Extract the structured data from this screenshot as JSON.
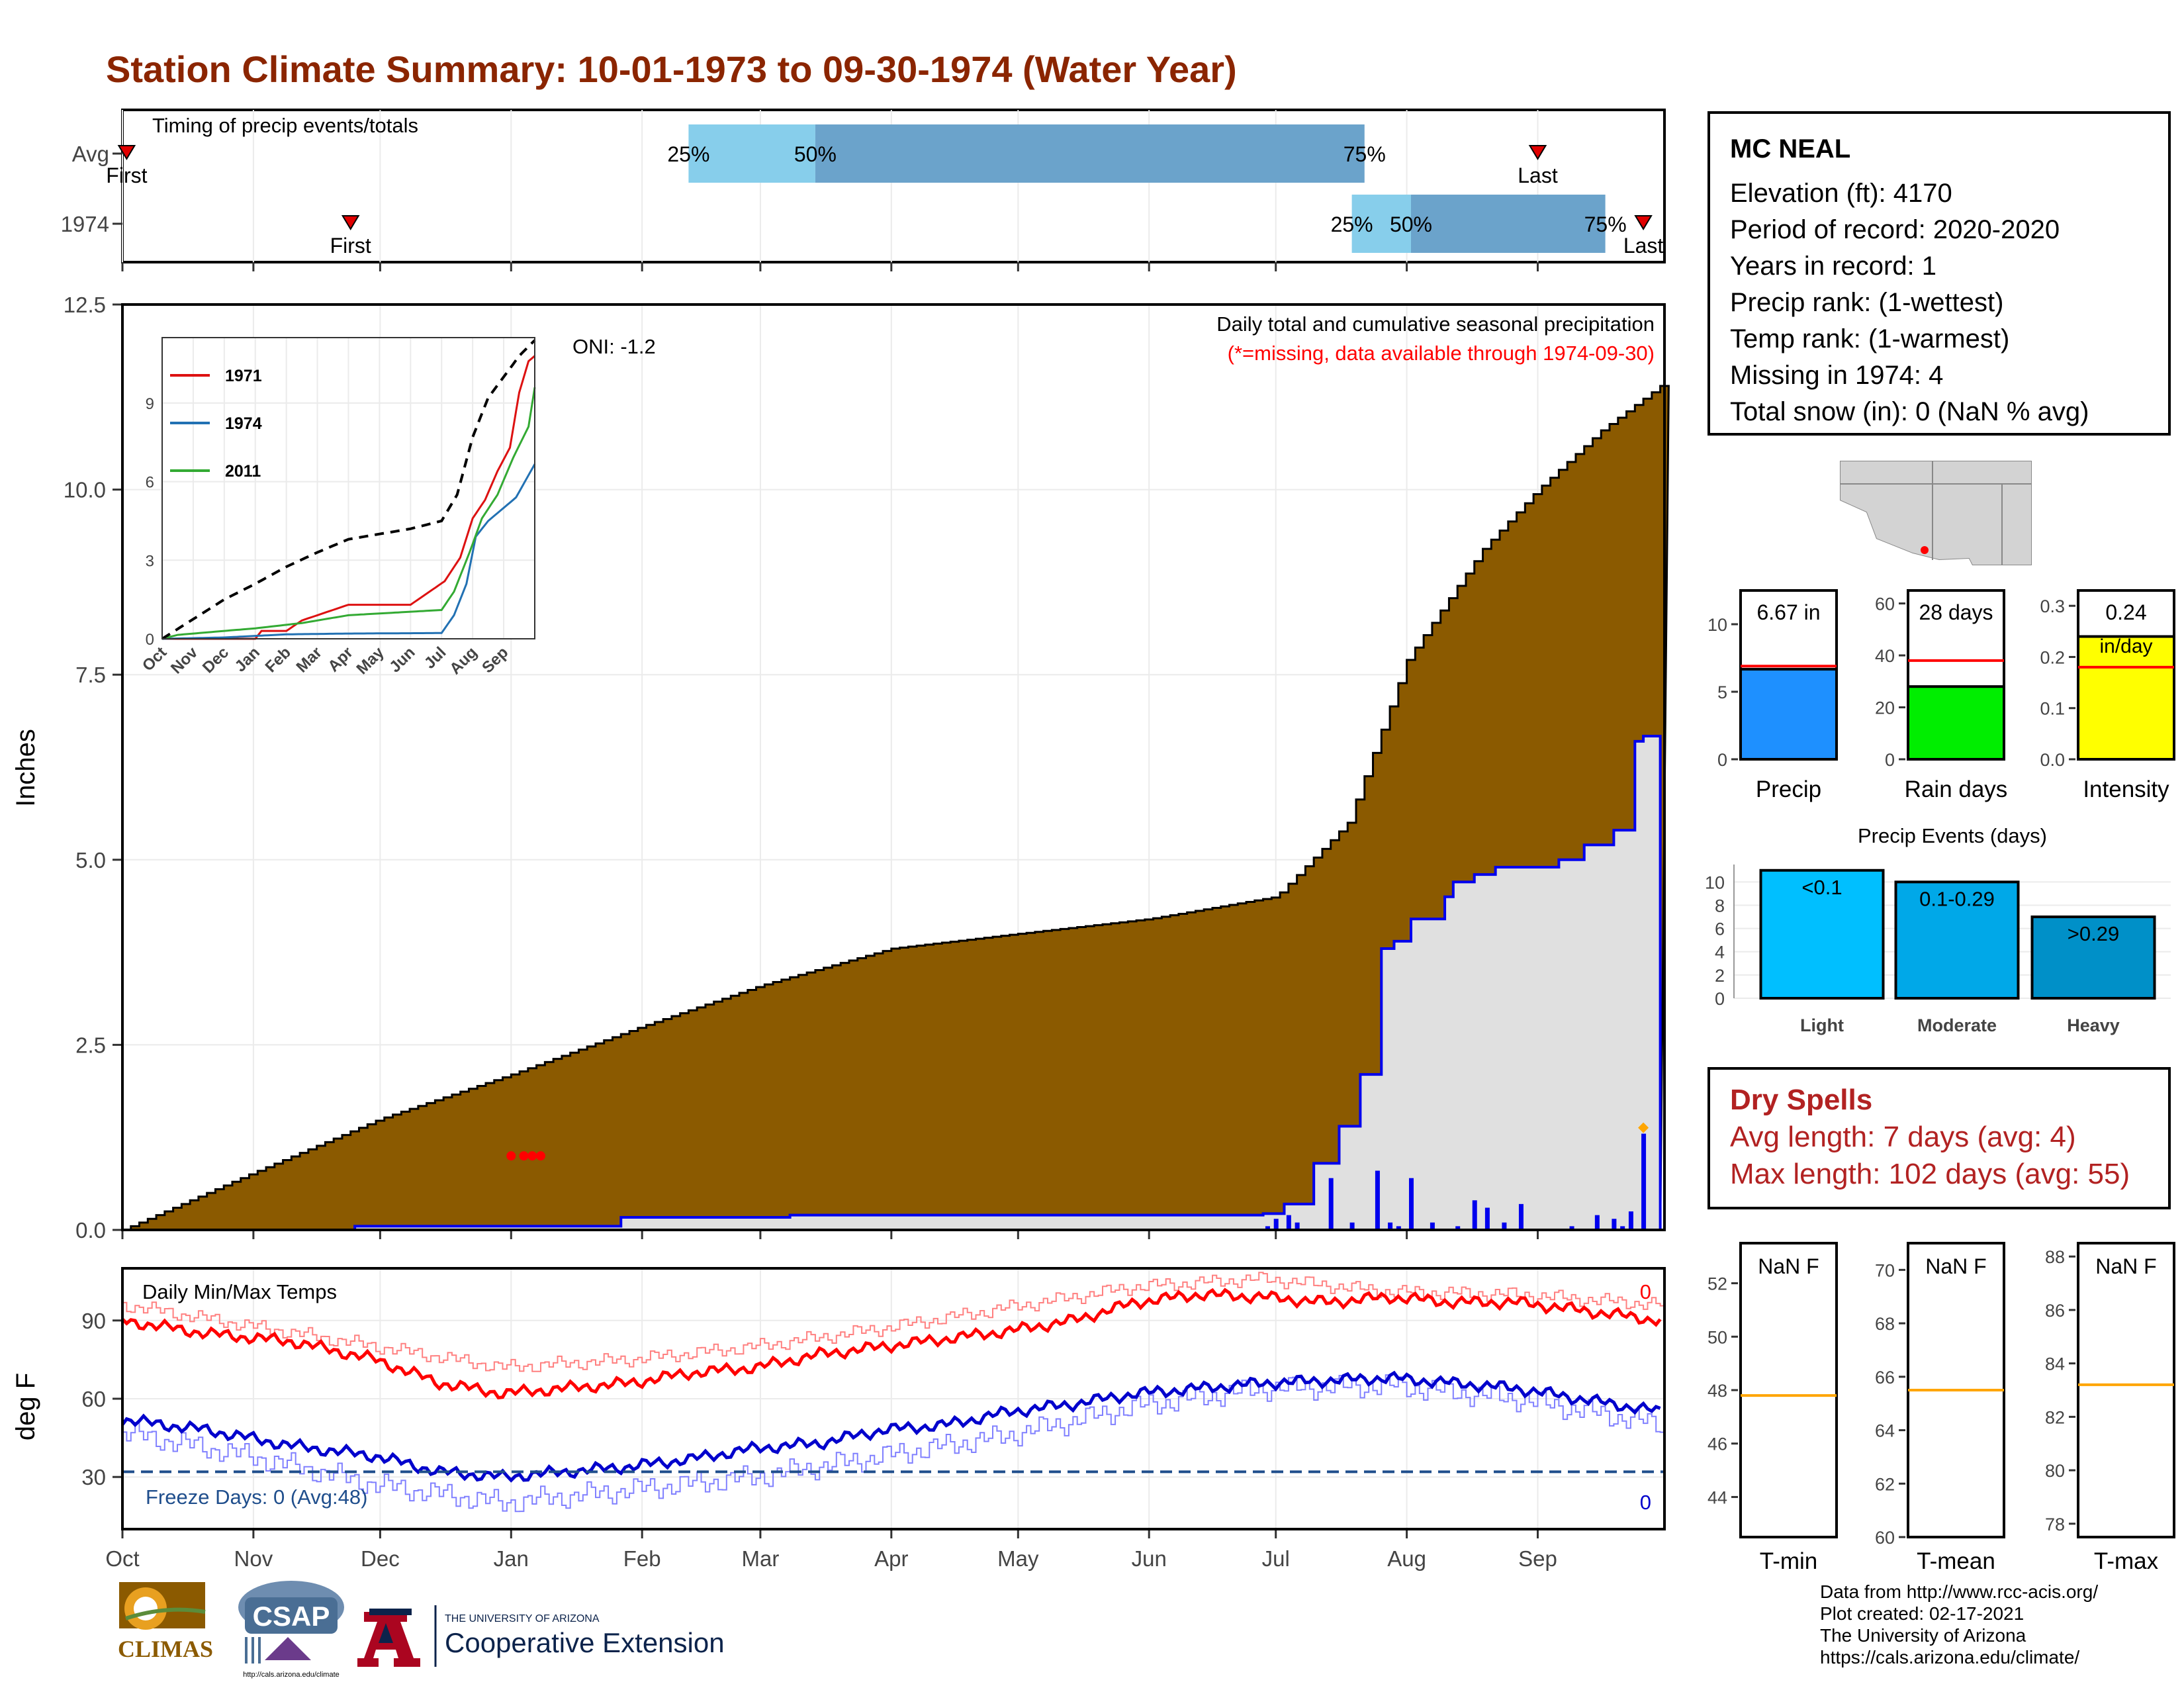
{
  "title": "Station Climate Summary: 10-01-1973 to 09-30-1974 (Water Year)",
  "station": {
    "name": "MC NEAL",
    "lines": [
      "Elevation (ft): 4170",
      "Period of record: 2020-2020",
      "Years in record: 1",
      "Precip rank:  (1-wettest)",
      "Temp rank:  (1-warmest)",
      "Missing in 1974: 4",
      "Total snow (in): 0 (NaN % avg)"
    ]
  },
  "dry_spells": {
    "title": "Dry Spells",
    "avg": "Avg length: 7 days (avg: 4)",
    "max": "Max length: 102 days (avg: 55)"
  },
  "credits": [
    "Data from http://www.rcc-acis.org/",
    "Plot created: 02-17-2021",
    "The University of Arizona",
    "https://cals.arizona.edu/climate/"
  ],
  "logos": {
    "climas": "CLIMAS",
    "csap": "CSAP",
    "csap_url": "http://cals.arizona.edu/climate",
    "ua_small": "THE UNIVERSITY OF ARIZONA",
    "ua_big": "Cooperative Extension"
  },
  "colors": {
    "cumulative_fill": "#8B5A00",
    "current_fill": "#E0E0E0",
    "current_line": "#0000EE",
    "tmax": "#FF0000",
    "tmin": "#0000CC",
    "avg_line": "#FFA500",
    "box_light": "#87CEEB",
    "box_dark": "#6BA3CB"
  },
  "chart_data": [
    {
      "type": "timeline",
      "title": "Timing of precip events/totals",
      "rows": [
        {
          "label": "Avg",
          "first": "Oct 2",
          "q25": "Feb 12",
          "q50": "Mar 14",
          "q75": "Jul 22",
          "last": "Sep 1",
          "first_label": "First",
          "last_label": "Last",
          "q_labels": [
            "25%",
            "50%",
            "75%"
          ]
        },
        {
          "label": "1974",
          "first": "Nov 24",
          "q25": "Jul 19",
          "q50": "Aug 2",
          "q75": "Sep 17",
          "last": "Sep 26",
          "first_label": "First",
          "last_label": "Last",
          "q_labels": [
            "25%",
            "50%",
            "75%"
          ]
        }
      ]
    },
    {
      "type": "area",
      "title": "Daily total and cumulative seasonal precipitation",
      "subtitle": "(*=missing, data available through 1974-09-30)",
      "annotation": "ONI: -1.2",
      "ylabel": "Inches",
      "ylim": [
        0,
        12.5
      ],
      "yticks": [
        "0.0",
        "2.5",
        "5.0",
        "7.5",
        "10.0",
        "12.5"
      ],
      "xticks": [
        "Oct",
        "Nov",
        "Dec",
        "Jan",
        "Feb",
        "Mar",
        "Apr",
        "May",
        "Jun",
        "Jul",
        "Aug",
        "Sep"
      ],
      "cumulative_avg": {
        "day": [
          0,
          30,
          61,
          92,
          123,
          151,
          182,
          212,
          243,
          273,
          290,
          304,
          322,
          335,
          350,
          364
        ],
        "value": [
          0,
          0.75,
          1.5,
          2.1,
          2.75,
          3.3,
          3.8,
          4.0,
          4.2,
          4.5,
          5.5,
          7.7,
          9.2,
          10.0,
          10.8,
          11.4
        ]
      },
      "cumulative_1974": {
        "day": [
          0,
          55,
          118,
          158,
          270,
          275,
          282,
          288,
          293,
          298,
          301,
          305,
          313,
          315,
          320,
          325,
          333,
          340,
          346,
          353,
          358,
          360,
          364
        ],
        "value": [
          0,
          0.05,
          0.17,
          0.2,
          0.22,
          0.35,
          0.9,
          1.4,
          2.1,
          3.8,
          3.9,
          4.2,
          4.5,
          4.7,
          4.8,
          4.9,
          4.9,
          5.0,
          5.2,
          5.4,
          6.6,
          6.67,
          6.67
        ]
      },
      "daily_bars": {
        "day": [
          271,
          273,
          276,
          278,
          286,
          291,
          297,
          300,
          302,
          305,
          310,
          316,
          320,
          323,
          327,
          331,
          343,
          349,
          353,
          355,
          357,
          360
        ],
        "value": [
          0.05,
          0.15,
          0.2,
          0.1,
          0.7,
          0.1,
          0.8,
          0.1,
          0.05,
          0.7,
          0.1,
          0.05,
          0.4,
          0.3,
          0.1,
          0.35,
          0.05,
          0.2,
          0.15,
          0.05,
          0.25,
          1.3
        ]
      },
      "missing_days": [
        92,
        95,
        97,
        99
      ],
      "inset": {
        "type": "line",
        "xticks": [
          "Oct",
          "Nov",
          "Dec",
          "Jan",
          "Feb",
          "Mar",
          "Apr",
          "May",
          "Jun",
          "Jul",
          "Aug",
          "Sep"
        ],
        "yticks": [
          "0",
          "3",
          "6",
          "9"
        ],
        "ylim": [
          0,
          11.5
        ],
        "series": [
          {
            "name": "1971",
            "color": "#DD1111",
            "month": [
              0,
              3,
              3.2,
              4,
              4.5,
              6,
              8,
              9.1,
              9.6,
              10,
              10.4,
              10.8,
              11.2,
              11.5,
              11.8,
              12
            ],
            "value": [
              0,
              0,
              0.3,
              0.3,
              0.7,
              1.3,
              1.3,
              2.2,
              3.1,
              4.6,
              5.3,
              6.4,
              7.3,
              9.4,
              10.6,
              10.8
            ]
          },
          {
            "name": "1974",
            "color": "#2271B3",
            "month": [
              0,
              2,
              4,
              6,
              9,
              9.4,
              9.8,
              10.1,
              10.5,
              10.9,
              11.4,
              12
            ],
            "value": [
              0,
              0.05,
              0.17,
              0.2,
              0.22,
              0.9,
              2.1,
              3.9,
              4.5,
              4.9,
              5.4,
              6.67
            ]
          },
          {
            "name": "2011",
            "color": "#33AA33",
            "month": [
              0,
              0.5,
              3,
              4.5,
              6,
              9,
              9.4,
              9.9,
              10.3,
              10.8,
              11.3,
              11.8,
              12
            ],
            "value": [
              0,
              0.15,
              0.4,
              0.6,
              0.9,
              1.1,
              1.8,
              3.3,
              4.6,
              5.5,
              6.9,
              8.1,
              9.6
            ]
          },
          {
            "name": "avg",
            "color": "#000000",
            "dashed": true,
            "month": [
              0,
              1,
              2,
              3,
              4,
              5,
              6,
              7,
              8,
              9,
              9.5,
              10,
              10.5,
              11,
              11.5,
              12
            ],
            "value": [
              0,
              0.75,
              1.5,
              2.1,
              2.75,
              3.3,
              3.8,
              4.0,
              4.2,
              4.5,
              5.5,
              7.7,
              9.2,
              10.0,
              10.8,
              11.4
            ]
          }
        ]
      }
    },
    {
      "type": "line",
      "title": "Daily Min/Max Temps",
      "ylabel": "deg F",
      "ylim": [
        10,
        110
      ],
      "yticks": [
        "30",
        "60",
        "90"
      ],
      "xticks": [
        "Oct",
        "Nov",
        "Dec",
        "Jan",
        "Feb",
        "Mar",
        "Apr",
        "May",
        "Jun",
        "Jul",
        "Aug",
        "Sep"
      ],
      "freeze_label": "Freeze Days: 0 (Avg:48)",
      "freeze_line": 32,
      "count_above": "0",
      "count_below": "0",
      "tmax_smooth": {
        "day": [
          0,
          20,
          40,
          60,
          75,
          90,
          105,
          120,
          135,
          150,
          165,
          180,
          195,
          210,
          225,
          240,
          255,
          270,
          285,
          300,
          315,
          330,
          345,
          364
        ],
        "value": [
          90,
          85,
          82,
          75,
          66,
          62,
          64,
          66,
          70,
          72,
          77,
          80,
          83,
          86,
          90,
          97,
          100,
          99,
          97,
          99,
          97,
          97,
          94,
          90
        ]
      },
      "tmin_smooth": {
        "day": [
          0,
          20,
          40,
          60,
          75,
          90,
          105,
          120,
          135,
          150,
          165,
          180,
          195,
          210,
          225,
          240,
          255,
          270,
          285,
          300,
          315,
          330,
          345,
          364
        ],
        "value": [
          52,
          48,
          42,
          38,
          32,
          30,
          32,
          34,
          37,
          41,
          43,
          48,
          50,
          55,
          58,
          62,
          64,
          66,
          67,
          68,
          66,
          64,
          60,
          55
        ]
      },
      "tmax_avg": {
        "day": [
          0,
          30,
          60,
          90,
          120,
          150,
          180,
          210,
          240,
          270,
          300,
          330,
          364
        ],
        "value": [
          96,
          88,
          80,
          72,
          75,
          80,
          87,
          95,
          103,
          106,
          101,
          100,
          96
        ]
      },
      "tmin_avg": {
        "day": [
          0,
          30,
          60,
          90,
          120,
          150,
          180,
          210,
          240,
          270,
          300,
          330,
          364
        ],
        "value": [
          47,
          38,
          27,
          20,
          25,
          30,
          38,
          46,
          57,
          64,
          65,
          60,
          50
        ]
      }
    },
    {
      "type": "bar",
      "title": "Precip",
      "label_box": "6.67 in",
      "values": [
        6.67
      ],
      "avg": 6.9,
      "ylim": [
        0,
        12.5
      ],
      "yticks": [
        "0",
        "5",
        "10"
      ],
      "color": "#1E90FF"
    },
    {
      "type": "bar",
      "title": "Rain days",
      "label_box": "28 days",
      "values": [
        28
      ],
      "avg": 38,
      "ylim": [
        0,
        65
      ],
      "yticks": [
        "0",
        "20",
        "40",
        "60"
      ],
      "color": "#00EE00"
    },
    {
      "type": "bar",
      "title": "Intensity",
      "label_box": "0.24",
      "label_unit": "in/day",
      "values": [
        0.24
      ],
      "avg": 0.18,
      "ylim": [
        0,
        0.33
      ],
      "yticks": [
        "0.0",
        "0.1",
        "0.2",
        "0.3"
      ],
      "color": "#FFFF00"
    },
    {
      "type": "bar",
      "title": "Precip Events (days)",
      "categories": [
        "Light",
        "Moderate",
        "Heavy"
      ],
      "labels": [
        "<0.1",
        "0.1-0.29",
        ">0.29"
      ],
      "values": [
        11,
        10,
        7
      ],
      "ylim": [
        0,
        11.5
      ],
      "yticks": [
        "0",
        "2",
        "4",
        "6",
        "8",
        "10"
      ],
      "colors": [
        "#00BFFF",
        "#00A8E8",
        "#0090C8"
      ]
    },
    {
      "type": "bar",
      "title": "T-min",
      "label_box": "NaN F",
      "avg": 47.8,
      "ylim": [
        42.5,
        53.5
      ],
      "yticks": [
        "44",
        "46",
        "48",
        "50",
        "52"
      ]
    },
    {
      "type": "bar",
      "title": "T-mean",
      "label_box": "NaN F",
      "avg": 65.5,
      "ylim": [
        60,
        71
      ],
      "yticks": [
        "60",
        "62",
        "64",
        "66",
        "68",
        "70"
      ]
    },
    {
      "type": "bar",
      "title": "T-max",
      "label_box": "NaN F",
      "avg": 83.2,
      "ylim": [
        77.5,
        88.5
      ],
      "yticks": [
        "78",
        "80",
        "82",
        "84",
        "86",
        "88"
      ]
    }
  ]
}
